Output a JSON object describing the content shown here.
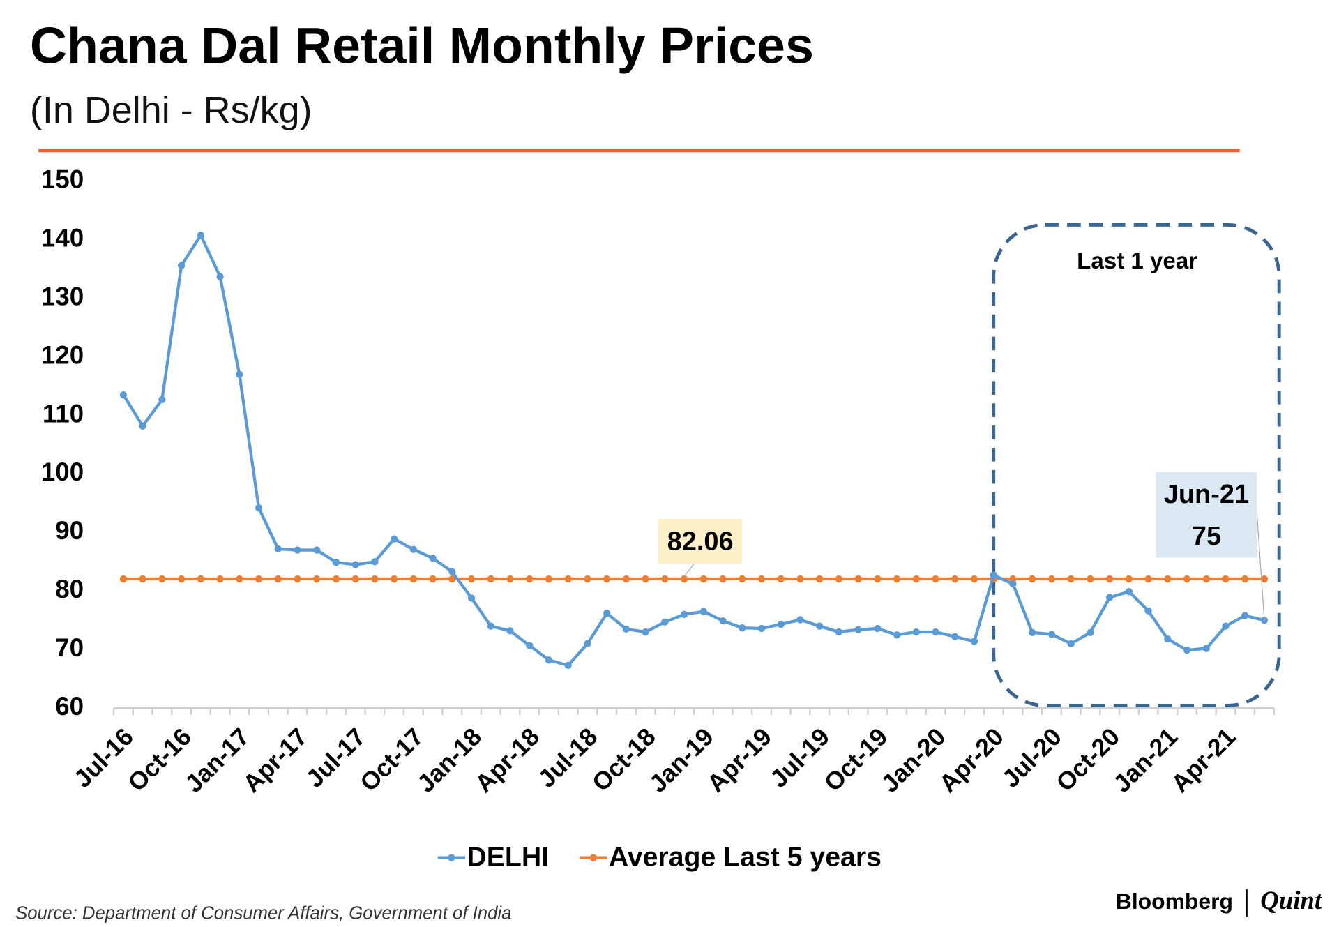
{
  "chart_data": {
    "type": "line",
    "title": "Chana Dal Retail Monthly Prices",
    "subtitle": "(In Delhi - Rs/kg)",
    "categories": [
      "Jul-16",
      null,
      null,
      "Oct-16",
      null,
      null,
      "Jan-17",
      null,
      null,
      "Apr-17",
      null,
      null,
      "Jul-17",
      null,
      null,
      "Oct-17",
      null,
      null,
      "Jan-18",
      null,
      null,
      "Apr-18",
      null,
      null,
      "Jul-18",
      null,
      null,
      "Oct-18",
      null,
      null,
      "Jan-19",
      null,
      null,
      "Apr-19",
      null,
      null,
      "Jul-19",
      null,
      null,
      "Oct-19",
      null,
      null,
      "Jan-20",
      null,
      null,
      "Apr-20",
      null,
      null,
      "Jul-20",
      null,
      null,
      "Oct-20",
      null,
      null,
      "Jan-21",
      null,
      null,
      "Apr-21",
      null,
      null
    ],
    "series": [
      {
        "name": "DELHI",
        "color": "#5b9bd5",
        "values": [
          113.5,
          108.2,
          112.7,
          135.6,
          140.8,
          133.7,
          117,
          94.2,
          87.2,
          87,
          87,
          84.9,
          84.5,
          85,
          88.9,
          87.1,
          85.6,
          83.3,
          78.8,
          74,
          73.2,
          70.7,
          68.2,
          67.3,
          71,
          76.2,
          73.5,
          73,
          74.7,
          76,
          76.5,
          74.9,
          73.7,
          73.6,
          74.3,
          75.1,
          74,
          73,
          73.4,
          73.6,
          72.5,
          73,
          73,
          72.2,
          71.4,
          82.7,
          81.2,
          72.9,
          72.6,
          71,
          72.9,
          78.9,
          79.9,
          76.6,
          71.8,
          69.9,
          70.2,
          74,
          75.8,
          75
        ]
      },
      {
        "name": "Average Last 5 years",
        "color": "#ed7d31",
        "values": [
          82.06,
          82.06,
          82.06,
          82.06,
          82.06,
          82.06,
          82.06,
          82.06,
          82.06,
          82.06,
          82.06,
          82.06,
          82.06,
          82.06,
          82.06,
          82.06,
          82.06,
          82.06,
          82.06,
          82.06,
          82.06,
          82.06,
          82.06,
          82.06,
          82.06,
          82.06,
          82.06,
          82.06,
          82.06,
          82.06,
          82.06,
          82.06,
          82.06,
          82.06,
          82.06,
          82.06,
          82.06,
          82.06,
          82.06,
          82.06,
          82.06,
          82.06,
          82.06,
          82.06,
          82.06,
          82.06,
          82.06,
          82.06,
          82.06,
          82.06,
          82.06,
          82.06,
          82.06,
          82.06,
          82.06,
          82.06,
          82.06,
          82.06,
          82.06,
          82.06
        ]
      }
    ],
    "ylim": [
      60,
      150
    ],
    "yticks": [
      60,
      70,
      80,
      90,
      100,
      110,
      120,
      130,
      140,
      150
    ],
    "grid": false,
    "legend": "bottom",
    "highlight_label": "Last 1 year",
    "callout_label": "Jun-21",
    "source": "Source: Department of Consumer Affairs, Government of India",
    "brand": "Bloomberg",
    "brand2": "Quint"
  }
}
